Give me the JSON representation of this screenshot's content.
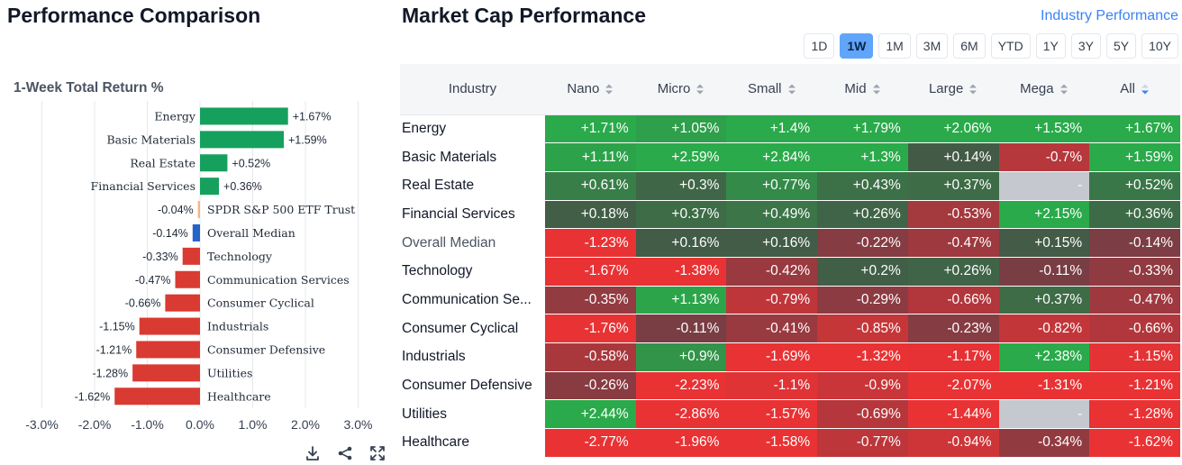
{
  "left": {
    "title": "Performance Comparison"
  },
  "right": {
    "title": "Market Cap Performance",
    "link": "Industry Performance",
    "ranges": [
      "1D",
      "1W",
      "1M",
      "3M",
      "6M",
      "YTD",
      "1Y",
      "3Y",
      "5Y",
      "10Y"
    ],
    "active_range": "1W",
    "columns": [
      "Industry",
      "Nano",
      "Micro",
      "Small",
      "Mid",
      "Large",
      "Mega",
      "All"
    ],
    "active_sort_column": "All",
    "rows": [
      {
        "label": "Energy",
        "values": [
          "+1.71%",
          "+1.05%",
          "+1.4%",
          "+1.79%",
          "+2.06%",
          "+1.53%",
          "+1.67%"
        ]
      },
      {
        "label": "Basic Materials",
        "values": [
          "+1.11%",
          "+2.59%",
          "+2.84%",
          "+1.3%",
          "+0.14%",
          "-0.7%",
          "+1.59%"
        ]
      },
      {
        "label": "Real Estate",
        "values": [
          "+0.61%",
          "+0.3%",
          "+0.77%",
          "+0.43%",
          "+0.37%",
          "-",
          "+0.52%"
        ]
      },
      {
        "label": "Financial Services",
        "values": [
          "+0.18%",
          "+0.37%",
          "+0.49%",
          "+0.26%",
          "-0.53%",
          "+2.15%",
          "+0.36%"
        ]
      },
      {
        "label": "Overall Median",
        "values": [
          "-1.23%",
          "+0.16%",
          "+0.16%",
          "-0.22%",
          "-0.47%",
          "+0.15%",
          "-0.14%"
        ],
        "muted": true
      },
      {
        "label": "Technology",
        "values": [
          "-1.67%",
          "-1.38%",
          "-0.42%",
          "+0.2%",
          "+0.26%",
          "-0.11%",
          "-0.33%"
        ]
      },
      {
        "label": "Communication Se...",
        "values": [
          "-0.35%",
          "+1.13%",
          "-0.79%",
          "-0.29%",
          "-0.66%",
          "+0.37%",
          "-0.47%"
        ]
      },
      {
        "label": "Consumer Cyclical",
        "values": [
          "-1.76%",
          "-0.11%",
          "-0.41%",
          "-0.85%",
          "-0.23%",
          "-0.82%",
          "-0.66%"
        ]
      },
      {
        "label": "Industrials",
        "values": [
          "-0.58%",
          "+0.9%",
          "-1.69%",
          "-1.32%",
          "-1.17%",
          "+2.38%",
          "-1.15%"
        ]
      },
      {
        "label": "Consumer Defensive",
        "values": [
          "-0.26%",
          "-2.23%",
          "-1.1%",
          "-0.9%",
          "-2.07%",
          "-1.31%",
          "-1.21%"
        ]
      },
      {
        "label": "Utilities",
        "values": [
          "+2.44%",
          "-2.86%",
          "-1.57%",
          "-0.69%",
          "-1.44%",
          "-",
          "-1.28%"
        ]
      },
      {
        "label": "Healthcare",
        "values": [
          "-2.77%",
          "-1.96%",
          "-1.58%",
          "-0.77%",
          "-0.94%",
          "-0.34%",
          "-1.62%"
        ]
      }
    ]
  },
  "colors": {
    "bar_positive": "#16a05e",
    "bar_negative": "#d93a32",
    "bar_benchmark": "#f2b77c",
    "bar_median": "#2563c9",
    "cell_missing": "#c5c8cf",
    "accent": "#60a5fa"
  },
  "icons": [
    "download-icon",
    "share-icon",
    "fullscreen-icon",
    "sort-icon"
  ],
  "chart_data": {
    "type": "bar",
    "orientation": "horizontal",
    "title": "1-Week Total Return %",
    "categories": [
      "Energy",
      "Basic Materials",
      "Real Estate",
      "Financial Services",
      "SPDR S&P 500 ETF Trust",
      "Overall Median",
      "Technology",
      "Communication Services",
      "Consumer Cyclical",
      "Industrials",
      "Consumer Defensive",
      "Utilities",
      "Healthcare"
    ],
    "values": [
      1.67,
      1.59,
      0.52,
      0.36,
      -0.04,
      -0.14,
      -0.33,
      -0.47,
      -0.66,
      -1.15,
      -1.21,
      -1.28,
      -1.62
    ],
    "labels": [
      "+1.67%",
      "+1.59%",
      "+0.52%",
      "+0.36%",
      "-0.04%",
      "-0.14%",
      "-0.33%",
      "-0.47%",
      "-0.66%",
      "-1.15%",
      "-1.21%",
      "-1.28%",
      "-1.62%"
    ],
    "x_ticks": [
      -3,
      -2,
      -1,
      0,
      1,
      2,
      3
    ],
    "x_tick_labels": [
      "-3.0%",
      "-2.0%",
      "-1.0%",
      "0.0%",
      "1.0%",
      "2.0%",
      "3.0%"
    ],
    "xlim": [
      -3,
      3
    ],
    "grid": true,
    "legend": "none"
  }
}
